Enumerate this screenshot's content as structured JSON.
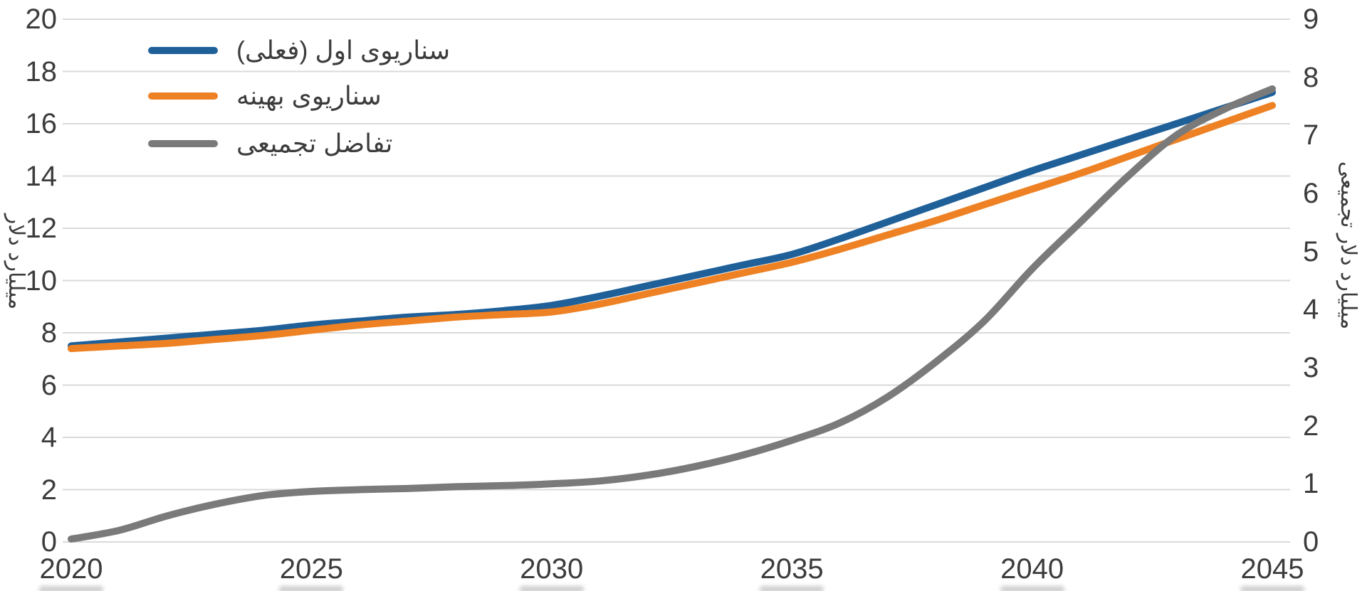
{
  "chart_data": {
    "type": "line",
    "title": "",
    "x": [
      2020,
      2021,
      2022,
      2023,
      2024,
      2025,
      2026,
      2027,
      2028,
      2029,
      2030,
      2031,
      2032,
      2033,
      2034,
      2035,
      2036,
      2037,
      2038,
      2039,
      2040,
      2041,
      2042,
      2043,
      2044,
      2045
    ],
    "x_tick_labels": [
      "2020",
      "2025",
      "2030",
      "2035",
      "2040",
      "2045"
    ],
    "series": [
      {
        "name": "سناریوی اول (فعلی)",
        "color": "#1F6099",
        "axis": "left",
        "values": [
          7.5,
          7.65,
          7.8,
          7.95,
          8.1,
          8.3,
          8.45,
          8.6,
          8.7,
          8.85,
          9.05,
          9.4,
          9.8,
          10.2,
          10.6,
          11.0,
          11.6,
          12.25,
          12.9,
          13.55,
          14.2,
          14.8,
          15.4,
          16.0,
          16.6,
          17.2
        ]
      },
      {
        "name": "سناریوی بهینه",
        "color": "#EE8123",
        "axis": "left",
        "values": [
          7.4,
          7.5,
          7.6,
          7.75,
          7.9,
          8.1,
          8.3,
          8.45,
          8.6,
          8.7,
          8.8,
          9.1,
          9.5,
          9.9,
          10.3,
          10.7,
          11.2,
          11.75,
          12.3,
          12.9,
          13.5,
          14.1,
          14.75,
          15.4,
          16.05,
          16.7
        ]
      },
      {
        "name": "تفاضل تجمیعی",
        "color": "#7A7A7A",
        "axis": "right",
        "values": [
          0.05,
          0.2,
          0.45,
          0.65,
          0.8,
          0.87,
          0.9,
          0.92,
          0.95,
          0.97,
          1.0,
          1.05,
          1.15,
          1.3,
          1.5,
          1.75,
          2.05,
          2.5,
          3.1,
          3.8,
          4.7,
          5.5,
          6.3,
          7.0,
          7.45,
          7.8
        ]
      }
    ],
    "left_axis": {
      "title": "میلیارد دلار",
      "min": 0,
      "max": 20,
      "step": 2
    },
    "right_axis": {
      "title": "میلیارد دلار تجمیعی",
      "min": 0,
      "max": 9,
      "step": 1
    },
    "grid": true,
    "legend_position": "top-left"
  },
  "colors": {
    "gridline": "#DADADA",
    "tick_text": "#3C3C3C",
    "background": "#FFFFFF"
  }
}
